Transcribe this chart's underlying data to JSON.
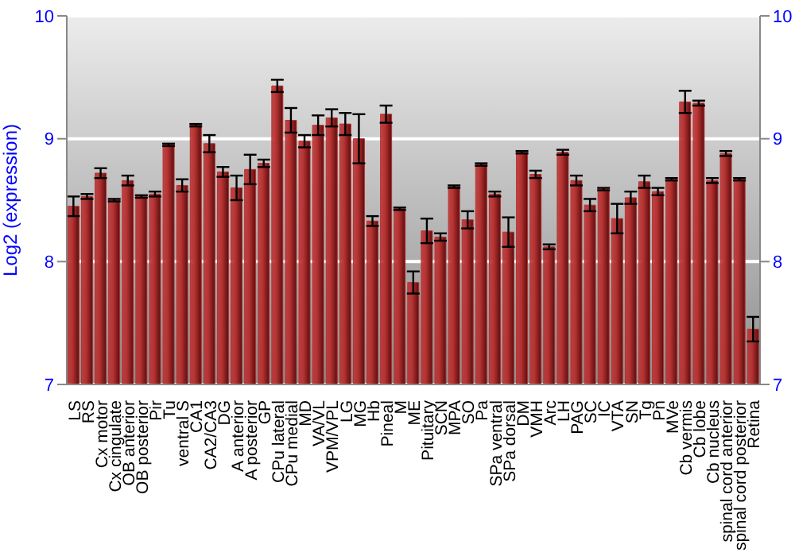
{
  "chart_data": {
    "type": "bar",
    "ylabel": "Log2 (expression)",
    "categories": [
      "LS",
      "RS",
      "Cx motor",
      "Cx cingulate",
      "OB anterior",
      "OB posterior",
      "Pir",
      "Tu",
      "ventral S",
      "CA1",
      "CA2/CA3",
      "DG",
      "A anterior",
      "A posterior",
      "GP",
      "CPu lateral",
      "CPu medial",
      "MD",
      "VA/VL",
      "VPM/VPL",
      "LG",
      "MG",
      "Hb",
      "Pineal",
      "M",
      "ME",
      "Pituitary",
      "SCN",
      "MPA",
      "SO",
      "Pa",
      "SPa ventral",
      "SPa dorsal",
      "DM",
      "VMH",
      "Arc",
      "LH",
      "PAG",
      "SC",
      "IC",
      "VTA",
      "SN",
      "Tg",
      "Pn",
      "MVe",
      "Cb vermis",
      "Cb lobe",
      "Cb nucleus",
      "spinal cord anterior",
      "spinal cord posterior",
      "Retina"
    ],
    "series": [
      {
        "color": "#b83232",
        "values": [
          8.45,
          8.53,
          8.72,
          8.5,
          8.66,
          8.53,
          8.55,
          8.95,
          8.62,
          9.11,
          8.96,
          8.73,
          8.6,
          8.75,
          8.8,
          9.43,
          9.15,
          8.98,
          9.11,
          9.17,
          9.12,
          9.0,
          8.33,
          9.2,
          8.43,
          7.83,
          8.25,
          8.2,
          8.61,
          8.34,
          8.79,
          8.55,
          8.24,
          8.89,
          8.71,
          8.12,
          8.89,
          8.66,
          8.46,
          8.59,
          8.35,
          8.52,
          8.65,
          8.57,
          8.67,
          9.3,
          9.29,
          8.66,
          8.88,
          8.67,
          7.45
        ],
        "errors": [
          0.08,
          0.02,
          0.04,
          0.01,
          0.04,
          0.01,
          0.02,
          0.01,
          0.05,
          0.01,
          0.07,
          0.04,
          0.1,
          0.12,
          0.03,
          0.05,
          0.1,
          0.05,
          0.08,
          0.07,
          0.09,
          0.2,
          0.04,
          0.07,
          0.01,
          0.09,
          0.1,
          0.03,
          0.01,
          0.07,
          0.01,
          0.02,
          0.12,
          0.01,
          0.03,
          0.02,
          0.02,
          0.04,
          0.05,
          0.01,
          0.12,
          0.05,
          0.05,
          0.03,
          0.01,
          0.09,
          0.02,
          0.02,
          0.02,
          0.01,
          0.1
        ]
      }
    ],
    "ylim": [
      7,
      10
    ],
    "yticks": [
      7,
      8,
      9,
      10
    ],
    "y2lim": [
      7,
      10
    ],
    "y2ticks": [
      7,
      8,
      9,
      10
    ],
    "grid": "y"
  }
}
